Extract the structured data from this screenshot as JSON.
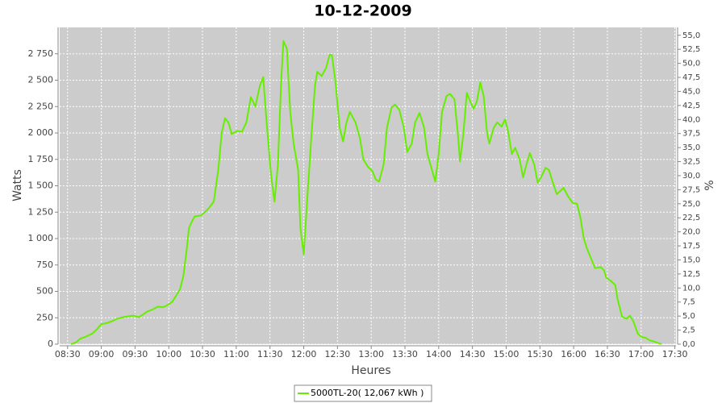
{
  "chart_data": {
    "type": "line",
    "title": "10-12-2009",
    "x_label": "Heures",
    "y_label": "Watts",
    "y2_label": "%",
    "x": [
      "08:33",
      "08:38",
      "08:41",
      "08:46",
      "08:52",
      "08:56",
      "09:00",
      "09:05",
      "09:10",
      "09:14",
      "09:19",
      "09:25",
      "09:29",
      "09:33",
      "09:37",
      "09:41",
      "09:46",
      "09:50",
      "09:55",
      "09:59",
      "10:03",
      "10:06",
      "10:10",
      "10:13",
      "10:16",
      "10:18",
      "10:20",
      "10:23",
      "10:29",
      "10:35",
      "10:40",
      "10:44",
      "10:47",
      "10:50",
      "10:53",
      "10:56",
      "11:01",
      "11:05",
      "11:09",
      "11:13",
      "11:17",
      "11:21",
      "11:24",
      "11:27",
      "11:31",
      "11:34",
      "11:37",
      "11:40",
      "11:42",
      "11:45",
      "11:48",
      "11:51",
      "11:55",
      "11:57",
      "12:00",
      "12:03",
      "12:07",
      "12:10",
      "12:12",
      "12:16",
      "12:20",
      "12:23",
      "12:25",
      "12:28",
      "12:32",
      "12:35",
      "12:38",
      "12:41",
      "12:46",
      "12:50",
      "12:53",
      "12:57",
      "13:01",
      "13:04",
      "13:07",
      "13:11",
      "13:14",
      "13:18",
      "13:21",
      "13:25",
      "13:29",
      "13:32",
      "13:36",
      "13:39",
      "13:43",
      "13:47",
      "13:50",
      "13:54",
      "13:57",
      "14:00",
      "14:03",
      "14:07",
      "14:10",
      "14:14",
      "14:17",
      "14:19",
      "14:22",
      "14:25",
      "14:28",
      "14:31",
      "14:34",
      "14:37",
      "14:40",
      "14:43",
      "14:45",
      "14:49",
      "14:52",
      "14:56",
      "14:59",
      "15:02",
      "15:05",
      "15:08",
      "15:12",
      "15:15",
      "15:18",
      "15:21",
      "15:25",
      "15:28",
      "15:31",
      "15:35",
      "15:38",
      "15:41",
      "15:45",
      "15:48",
      "15:51",
      "15:55",
      "15:59",
      "16:03",
      "16:06",
      "16:09",
      "16:12",
      "16:16",
      "16:19",
      "16:24",
      "16:27",
      "16:29",
      "16:33",
      "16:37",
      "16:39",
      "16:43",
      "16:47",
      "16:50",
      "16:53",
      "16:57",
      "17:00",
      "17:04",
      "17:07",
      "17:13",
      "17:18"
    ],
    "series": [
      {
        "name": "5000TL-20( 12,067 kWh )",
        "color": "#66ee00",
        "values": [
          0,
          20,
          50,
          70,
          100,
          140,
          190,
          200,
          220,
          240,
          255,
          265,
          270,
          255,
          280,
          310,
          330,
          355,
          350,
          370,
          400,
          450,
          520,
          650,
          900,
          1100,
          1150,
          1210,
          1220,
          1280,
          1350,
          1650,
          2000,
          2140,
          2100,
          1990,
          2020,
          2010,
          2100,
          2340,
          2250,
          2450,
          2530,
          2100,
          1600,
          1350,
          1700,
          2500,
          2870,
          2800,
          2200,
          1900,
          1650,
          1100,
          850,
          1350,
          2000,
          2450,
          2580,
          2540,
          2620,
          2740,
          2740,
          2500,
          2050,
          1920,
          2100,
          2200,
          2100,
          1950,
          1750,
          1680,
          1640,
          1560,
          1540,
          1700,
          2050,
          2240,
          2270,
          2220,
          2050,
          1820,
          1900,
          2100,
          2190,
          2050,
          1800,
          1650,
          1540,
          1800,
          2200,
          2350,
          2370,
          2320,
          2000,
          1730,
          2000,
          2380,
          2300,
          2230,
          2300,
          2480,
          2350,
          2000,
          1900,
          2050,
          2100,
          2060,
          2130,
          2000,
          1800,
          1860,
          1750,
          1580,
          1700,
          1810,
          1700,
          1530,
          1580,
          1670,
          1650,
          1550,
          1420,
          1450,
          1480,
          1400,
          1340,
          1330,
          1200,
          1000,
          900,
          800,
          720,
          730,
          700,
          630,
          600,
          560,
          430,
          260,
          240,
          270,
          220,
          100,
          70,
          60,
          40,
          20,
          0
        ]
      }
    ],
    "xlim": [
      "08:23",
      "17:31"
    ],
    "xticks": [
      "08:30",
      "09:00",
      "09:30",
      "10:00",
      "10:30",
      "11:00",
      "11:30",
      "12:00",
      "12:30",
      "13:00",
      "13:30",
      "14:00",
      "14:30",
      "15:00",
      "15:30",
      "16:00",
      "16:30",
      "17:00",
      "17:30"
    ],
    "ylim": [
      0,
      3000
    ],
    "yticks": [
      0,
      250,
      500,
      750,
      {
        "value": 1000,
        "label": "1 000"
      },
      {
        "value": 1250,
        "label": "1 250"
      },
      {
        "value": 1500,
        "label": "1 500"
      },
      {
        "value": 1750,
        "label": "1 750"
      },
      {
        "value": 2000,
        "label": "2 000"
      },
      {
        "value": 2250,
        "label": "2 250"
      },
      {
        "value": 2500,
        "label": "2 500"
      },
      {
        "value": 2750,
        "label": "2 750"
      }
    ],
    "y2lim": [
      0,
      56.4
    ],
    "y2ticks": [
      {
        "value": 0,
        "label": "0,0"
      },
      {
        "value": 2.5,
        "label": "2,5"
      },
      {
        "value": 5,
        "label": "5,0"
      },
      {
        "value": 7.5,
        "label": "7,5"
      },
      {
        "value": 10,
        "label": "10,0"
      },
      {
        "value": 12.5,
        "label": "12,5"
      },
      {
        "value": 15,
        "label": "15,0"
      },
      {
        "value": 17.5,
        "label": "17,5"
      },
      {
        "value": 20,
        "label": "20,0"
      },
      {
        "value": 22.5,
        "label": "22,5"
      },
      {
        "value": 25,
        "label": "25,0"
      },
      {
        "value": 27.5,
        "label": "27,5"
      },
      {
        "value": 30,
        "label": "30,0"
      },
      {
        "value": 32.5,
        "label": "32,5"
      },
      {
        "value": 35,
        "label": "35,0"
      },
      {
        "value": 37.5,
        "label": "37,5"
      },
      {
        "value": 40,
        "label": "40,0"
      },
      {
        "value": 42.5,
        "label": "42,5"
      },
      {
        "value": 45,
        "label": "45,0"
      },
      {
        "value": 47.5,
        "label": "47,5"
      },
      {
        "value": 50,
        "label": "50,0"
      },
      {
        "value": 52.5,
        "label": "52,5"
      },
      {
        "value": 55,
        "label": "55,0"
      }
    ],
    "grid": true,
    "background": "#cccccc",
    "legend": "bottom"
  }
}
